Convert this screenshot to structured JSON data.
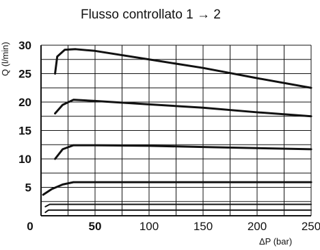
{
  "chart_data": {
    "type": "line",
    "title": "Flusso controllato   1 → 2",
    "xlabel": "ΔP (bar)",
    "ylabel": "Q (l/min)",
    "xlim": [
      0,
      250
    ],
    "ylim": [
      0,
      30
    ],
    "x_ticks": [
      0,
      50,
      100,
      150,
      200,
      250
    ],
    "y_ticks": [
      5,
      10,
      15,
      20,
      25,
      30
    ],
    "x_tick_labels": [
      "0",
      "50",
      "100",
      "150",
      "200",
      "250"
    ],
    "y_tick_labels": [
      "5",
      "10",
      "15",
      "20",
      "25",
      "30"
    ],
    "grid": true,
    "series": [
      {
        "color": "#111111",
        "points": [
          [
            13,
            25
          ],
          [
            15,
            28
          ],
          [
            22,
            29.2
          ],
          [
            32,
            29.3
          ],
          [
            50,
            29
          ],
          [
            100,
            27.5
          ],
          [
            150,
            26
          ],
          [
            200,
            24.2
          ],
          [
            250,
            22.5
          ]
        ]
      },
      {
        "color": "#111111",
        "points": [
          [
            13,
            18
          ],
          [
            20,
            19.5
          ],
          [
            30,
            20.4
          ],
          [
            50,
            20.2
          ],
          [
            100,
            19.6
          ],
          [
            150,
            19
          ],
          [
            200,
            18.2
          ],
          [
            250,
            17.5
          ]
        ]
      },
      {
        "color": "#111111",
        "points": [
          [
            13,
            10
          ],
          [
            20,
            11.7
          ],
          [
            30,
            12.4
          ],
          [
            50,
            12.4
          ],
          [
            100,
            12.3
          ],
          [
            150,
            12.1
          ],
          [
            200,
            11.9
          ],
          [
            250,
            11.7
          ]
        ]
      },
      {
        "color": "#111111",
        "points": [
          [
            2,
            3.7
          ],
          [
            10,
            4.7
          ],
          [
            20,
            5.5
          ],
          [
            30,
            5.9
          ],
          [
            50,
            5.9
          ],
          [
            100,
            5.9
          ],
          [
            150,
            5.9
          ],
          [
            200,
            5.9
          ],
          [
            250,
            5.9
          ]
        ]
      },
      {
        "color": "#111111",
        "points": [
          [
            4,
            1.6
          ],
          [
            8,
            2.0
          ],
          [
            15,
            2.0
          ],
          [
            100,
            2.0
          ],
          [
            250,
            2.0
          ]
        ]
      },
      {
        "color": "#111111",
        "points": [
          [
            4,
            0.6
          ],
          [
            7,
            1.0
          ],
          [
            15,
            1.0
          ],
          [
            100,
            1.0
          ],
          [
            250,
            1.0
          ]
        ]
      }
    ]
  }
}
